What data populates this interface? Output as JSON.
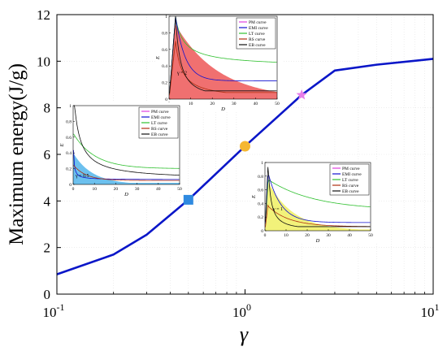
{
  "chart_data": [
    {
      "type": "line",
      "title": "",
      "xlabel": "γ",
      "ylabel": "Maximum energy(J/g)",
      "xscale": "log",
      "xlim": [
        0.1,
        10
      ],
      "ylim": [
        0,
        12
      ],
      "xticks": [
        {
          "value": 0.1,
          "base": "10",
          "exp": "-1"
        },
        {
          "value": 1,
          "base": "10",
          "exp": "0"
        },
        {
          "value": 10,
          "base": "10",
          "exp": "1"
        }
      ],
      "yticks": [
        "0",
        "2",
        "4",
        "6",
        "8",
        "10",
        "12"
      ],
      "grid": "off",
      "line_color": "#0a16c8",
      "series": [
        {
          "x": [
            0.1,
            0.2,
            0.3,
            0.5,
            1,
            2,
            3,
            5,
            10
          ],
          "y": [
            0.85,
            1.7,
            2.55,
            4.05,
            6.35,
            8.55,
            9.6,
            9.85,
            10.1
          ]
        }
      ],
      "markers": [
        {
          "shape": "square",
          "color": "#2f8ae0",
          "x": 0.5,
          "y": 4.05
        },
        {
          "shape": "circle",
          "color": "#f5b731",
          "x": 1,
          "y": 6.35
        },
        {
          "shape": "star",
          "color": "#e87ee8",
          "x": 2,
          "y": 8.55
        }
      ]
    },
    {
      "type": "line",
      "inset": "top-center",
      "ylabel": "E",
      "xlabel": "D",
      "xlim": [
        0,
        50
      ],
      "ylim": [
        0,
        1
      ],
      "xticks": [
        "0",
        "10",
        "20",
        "30",
        "40",
        "50"
      ],
      "yticks": [
        "0",
        "0.2",
        "0.4",
        "0.6",
        "0.8",
        "1"
      ],
      "annotation": "γ = 2",
      "fill_color": "#f07070",
      "legend": [
        "PM curve",
        "EMI curve",
        "LT curve",
        "RS curve",
        "EB curve"
      ]
    },
    {
      "type": "line",
      "inset": "middle-left",
      "ylabel": "E",
      "xlabel": "D",
      "xlim": [
        0,
        50
      ],
      "ylim": [
        0,
        1
      ],
      "xticks": [
        "0",
        "10",
        "20",
        "30",
        "40",
        "50"
      ],
      "yticks": [
        "0",
        "0.2",
        "0.4",
        "0.6",
        "0.8",
        "1"
      ],
      "annotation": "γ = 0.5",
      "fill_color": "#6cc0ee",
      "legend": [
        "PM curve",
        "EMI curve",
        "LT curve",
        "RS curve",
        "EB curve"
      ]
    },
    {
      "type": "line",
      "inset": "bottom-right",
      "ylabel": "E",
      "xlabel": "D",
      "xlim": [
        0,
        50
      ],
      "ylim": [
        0,
        1
      ],
      "xticks": [
        "0",
        "10",
        "20",
        "30",
        "40",
        "50"
      ],
      "yticks": [
        "0",
        "0.2",
        "0.4",
        "0.6",
        "0.8",
        "1"
      ],
      "annotation": "γ = 1",
      "fill_color": "#f2f27a",
      "legend": [
        "PM curve",
        "EMI curve",
        "LT curve",
        "RS curve",
        "EB curve"
      ]
    }
  ],
  "colors": {
    "PM curve": "#e040e0",
    "EMI curve": "#1010d0",
    "LT curve": "#30c030",
    "RS curve": "#b03010",
    "EB curve": "#101010"
  }
}
